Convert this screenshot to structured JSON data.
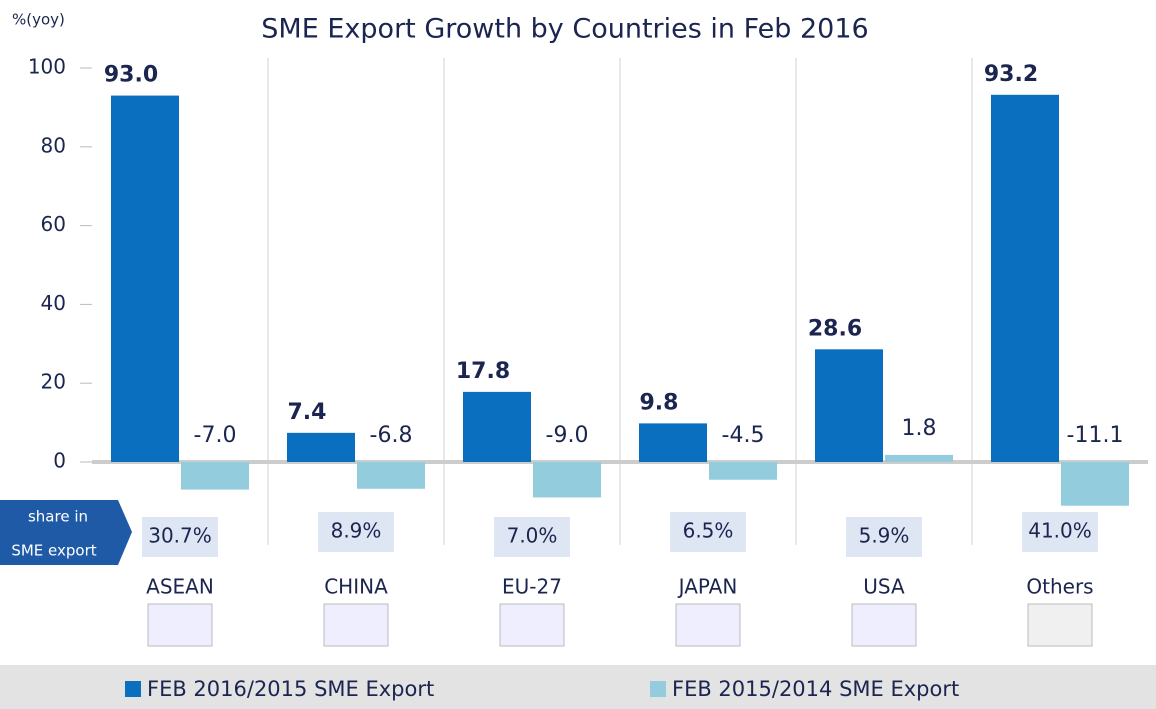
{
  "chart_data": {
    "type": "bar",
    "title": "SME Export Growth by Countries in Feb 2016",
    "y_label": "%(yoy)",
    "categories": [
      "ASEAN",
      "CHINA",
      "EU-27",
      "JAPAN",
      "USA",
      "Others"
    ],
    "series": [
      {
        "name": "FEB 2016/2015 SME Export",
        "color": "#0b6fc0",
        "values": [
          93.0,
          7.4,
          17.8,
          9.8,
          28.6,
          93.2
        ],
        "value_labels": [
          "93.0",
          "7.4",
          "17.8",
          "9.8",
          "28.6",
          "93.2"
        ]
      },
      {
        "name": "FEB 2015/2014 SME Export",
        "color": "#93cddd",
        "values": [
          -7.0,
          -6.8,
          -9.0,
          -4.5,
          1.8,
          -11.1
        ],
        "value_labels": [
          "-7.0",
          "-6.8",
          "-9.0",
          "-4.5",
          "1.8",
          "-11.1"
        ]
      }
    ],
    "share": {
      "label_lines": [
        "share in",
        "SME export"
      ],
      "values": [
        30.7,
        8.9,
        7.0,
        6.5,
        5.9,
        41.0
      ],
      "value_labels": [
        "30.7%",
        "8.9%",
        "7.0%",
        "6.5%",
        "5.9%",
        "41.0%"
      ]
    },
    "ylim": [
      -12,
      100
    ],
    "yticks": [
      0,
      20,
      40,
      60,
      80,
      100
    ],
    "grid": true
  }
}
